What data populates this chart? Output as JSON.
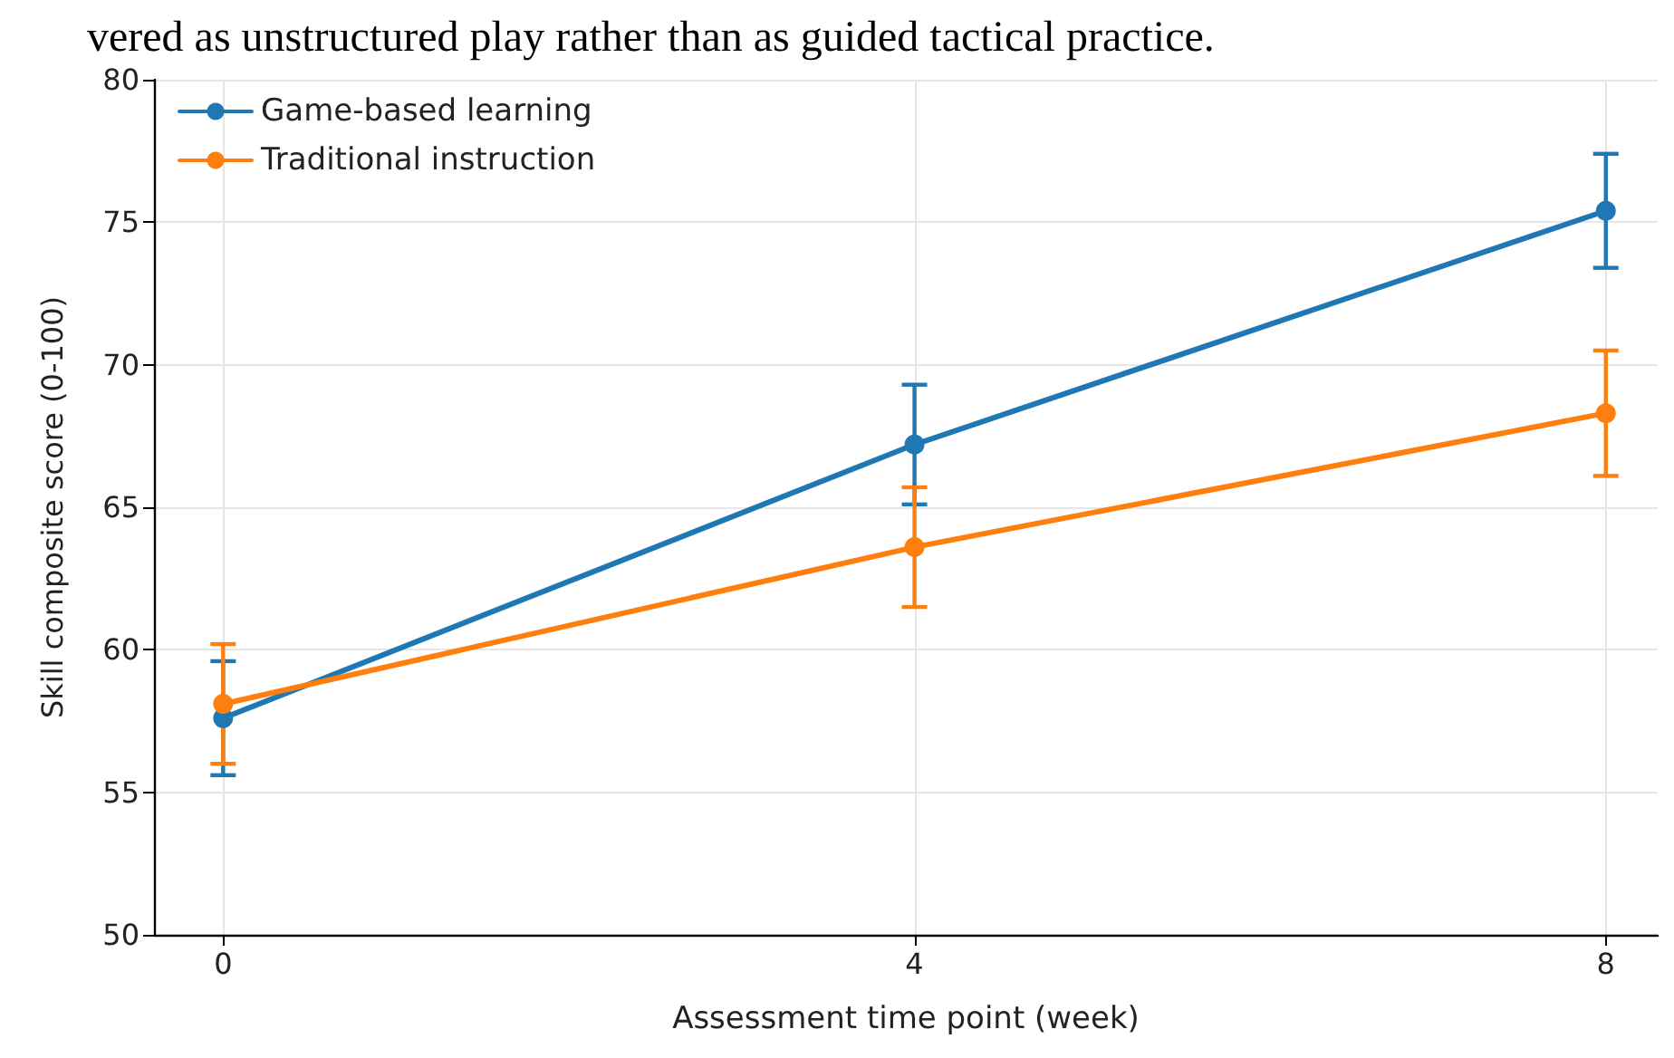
{
  "chart_data": {
    "type": "line",
    "annotations": [
      "vered as unstructured play rather than as guided tactical practice."
    ],
    "xlabel": "Assessment time point (week)",
    "ylabel": "Skill composite score (0-100)",
    "x": [
      0,
      4,
      8
    ],
    "xlim": [
      -0.4,
      8.3
    ],
    "xticks": [
      0,
      4,
      8
    ],
    "ylim": [
      50,
      80
    ],
    "yticks": [
      50,
      55,
      60,
      65,
      70,
      75,
      80
    ],
    "series": [
      {
        "name": "Game-based learning",
        "color": "#1f77b4",
        "values": [
          57.6,
          67.2,
          75.4
        ],
        "errors": [
          2.0,
          2.1,
          2.0
        ]
      },
      {
        "name": "Traditional instruction",
        "color": "#ff7f0e",
        "values": [
          58.1,
          63.6,
          68.3
        ],
        "errors": [
          2.1,
          2.1,
          2.2
        ]
      }
    ],
    "grid": true,
    "legend": "top left",
    "marker": "circle",
    "line_style": "solid"
  }
}
